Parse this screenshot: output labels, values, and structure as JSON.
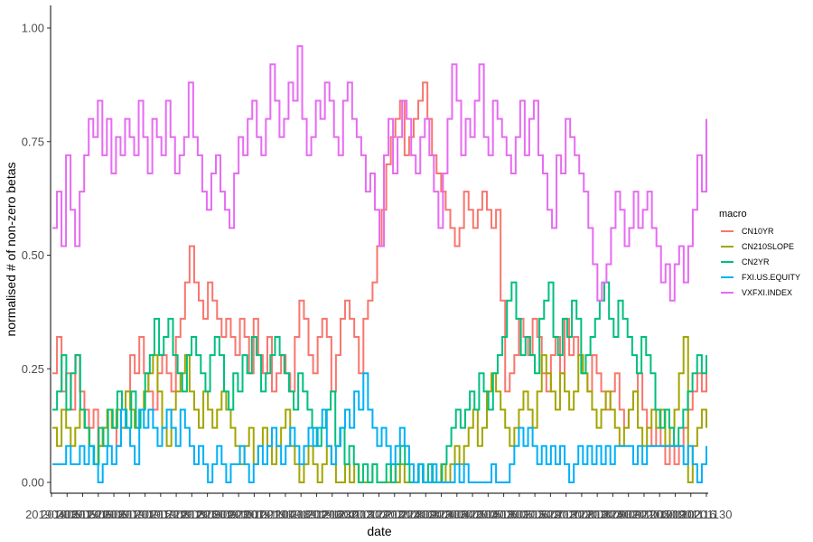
{
  "chart_data": {
    "type": "line",
    "xlabel": "date",
    "ylabel": "normalised # of non-zero betas",
    "ylim": [
      0,
      1
    ],
    "y_ticks": [
      "0.00",
      "0.25",
      "0.50",
      "0.75",
      "1.00"
    ],
    "x_tick_labels": [
      "20190403",
      "20190517",
      "20190520",
      "20190603",
      "20190617",
      "20190701",
      "20190715",
      "20190729",
      "20190812",
      "20190826",
      "20190909",
      "20190923",
      "20191007",
      "20191021",
      "20191104",
      "20191118",
      "20191202",
      "20191216",
      "20191230",
      "20200113",
      "20200127",
      "20200210",
      "20200224",
      "20200309",
      "20200323",
      "20200406",
      "20200420",
      "20200504",
      "20200518",
      "20200601",
      "20200615",
      "20200629",
      "20200713",
      "20200727",
      "20200810",
      "20200824",
      "20200907",
      "20200921",
      "20201005",
      "20201019",
      "20201102",
      "20201116",
      "20201130"
    ],
    "grid": false,
    "legend": {
      "title": "macro",
      "position": "right"
    },
    "series": [
      {
        "name": "CN10YR",
        "color": "#F8766D",
        "values": [
          0.24,
          0.32,
          0.2,
          0.24,
          0.16,
          0.28,
          0.2,
          0.16,
          0.12,
          0.16,
          0.08,
          0.12,
          0.16,
          0.12,
          0.08,
          0.12,
          0.2,
          0.28,
          0.24,
          0.32,
          0.24,
          0.2,
          0.16,
          0.24,
          0.28,
          0.24,
          0.2,
          0.32,
          0.36,
          0.44,
          0.52,
          0.44,
          0.4,
          0.36,
          0.44,
          0.4,
          0.36,
          0.32,
          0.36,
          0.32,
          0.28,
          0.36,
          0.32,
          0.24,
          0.36,
          0.28,
          0.24,
          0.32,
          0.2,
          0.24,
          0.28,
          0.24,
          0.2,
          0.32,
          0.4,
          0.36,
          0.28,
          0.24,
          0.32,
          0.36,
          0.32,
          0.2,
          0.28,
          0.36,
          0.4,
          0.36,
          0.32,
          0.24,
          0.36,
          0.4,
          0.44,
          0.52,
          0.6,
          0.7,
          0.76,
          0.8,
          0.84,
          0.72,
          0.76,
          0.8,
          0.84,
          0.88,
          0.8,
          0.72,
          0.68,
          0.64,
          0.6,
          0.56,
          0.52,
          0.56,
          0.64,
          0.6,
          0.56,
          0.6,
          0.64,
          0.6,
          0.56,
          0.6,
          0.4,
          0.2,
          0.24,
          0.28,
          0.36,
          0.32,
          0.28,
          0.36,
          0.32,
          0.24,
          0.2,
          0.28,
          0.32,
          0.24,
          0.36,
          0.28,
          0.32,
          0.28,
          0.24,
          0.2,
          0.28,
          0.24,
          0.2,
          0.16,
          0.2,
          0.24,
          0.16,
          0.12,
          0.16,
          0.2,
          0.24,
          0.16,
          0.12,
          0.08,
          0.12,
          0.08,
          0.04,
          0.08,
          0.04,
          0.08,
          0.12,
          0.16,
          0.2,
          0.24,
          0.2,
          0.24
        ]
      },
      {
        "name": "CN210SLOPE",
        "color": "#A3A500",
        "values": [
          0.12,
          0.08,
          0.16,
          0.12,
          0.08,
          0.12,
          0.16,
          0.12,
          0.08,
          0.04,
          0.08,
          0.12,
          0.16,
          0.12,
          0.16,
          0.12,
          0.2,
          0.16,
          0.12,
          0.16,
          0.2,
          0.24,
          0.28,
          0.2,
          0.12,
          0.08,
          0.16,
          0.2,
          0.24,
          0.28,
          0.2,
          0.16,
          0.12,
          0.2,
          0.16,
          0.12,
          0.16,
          0.2,
          0.16,
          0.12,
          0.08,
          0.04,
          0.08,
          0.12,
          0.04,
          0.08,
          0.12,
          0.08,
          0.04,
          0.08,
          0.12,
          0.16,
          0.08,
          0.04,
          0.0,
          0.04,
          0.08,
          0.04,
          0.0,
          0.04,
          0.08,
          0.04,
          0.0,
          0.0,
          0.04,
          0.0,
          0.04,
          0.0,
          0.0,
          0.0,
          0.04,
          0.0,
          0.0,
          0.0,
          0.04,
          0.0,
          0.04,
          0.0,
          0.0,
          0.0,
          0.04,
          0.0,
          0.0,
          0.0,
          0.0,
          0.04,
          0.0,
          0.04,
          0.08,
          0.04,
          0.08,
          0.12,
          0.16,
          0.08,
          0.12,
          0.2,
          0.24,
          0.2,
          0.16,
          0.12,
          0.08,
          0.12,
          0.16,
          0.2,
          0.16,
          0.12,
          0.2,
          0.28,
          0.24,
          0.2,
          0.16,
          0.24,
          0.2,
          0.16,
          0.2,
          0.28,
          0.24,
          0.2,
          0.16,
          0.12,
          0.16,
          0.2,
          0.16,
          0.12,
          0.08,
          0.12,
          0.16,
          0.2,
          0.12,
          0.08,
          0.12,
          0.16,
          0.12,
          0.16,
          0.08,
          0.12,
          0.16,
          0.24,
          0.32,
          0.0,
          0.08,
          0.12,
          0.16,
          0.12
        ]
      },
      {
        "name": "CN2YR",
        "color": "#00BF7D",
        "values": [
          0.16,
          0.2,
          0.28,
          0.16,
          0.24,
          0.28,
          0.16,
          0.12,
          0.08,
          0.04,
          0.12,
          0.08,
          0.16,
          0.12,
          0.2,
          0.16,
          0.12,
          0.2,
          0.12,
          0.16,
          0.24,
          0.28,
          0.36,
          0.28,
          0.32,
          0.36,
          0.28,
          0.24,
          0.2,
          0.28,
          0.32,
          0.28,
          0.24,
          0.2,
          0.28,
          0.32,
          0.28,
          0.2,
          0.16,
          0.24,
          0.2,
          0.28,
          0.24,
          0.32,
          0.28,
          0.2,
          0.24,
          0.28,
          0.32,
          0.28,
          0.24,
          0.2,
          0.16,
          0.24,
          0.2,
          0.16,
          0.12,
          0.08,
          0.12,
          0.16,
          0.2,
          0.08,
          0.12,
          0.04,
          0.08,
          0.04,
          0.0,
          0.04,
          0.0,
          0.04,
          0.0,
          0.0,
          0.04,
          0.0,
          0.04,
          0.08,
          0.04,
          0.0,
          0.0,
          0.04,
          0.0,
          0.04,
          0.0,
          0.0,
          0.04,
          0.08,
          0.12,
          0.16,
          0.12,
          0.16,
          0.2,
          0.16,
          0.24,
          0.2,
          0.16,
          0.24,
          0.28,
          0.32,
          0.4,
          0.44,
          0.36,
          0.28,
          0.32,
          0.28,
          0.24,
          0.36,
          0.4,
          0.44,
          0.32,
          0.28,
          0.36,
          0.32,
          0.4,
          0.36,
          0.24,
          0.28,
          0.32,
          0.36,
          0.4,
          0.44,
          0.36,
          0.32,
          0.4,
          0.36,
          0.32,
          0.28,
          0.24,
          0.32,
          0.28,
          0.24,
          0.16,
          0.12,
          0.16,
          0.12,
          0.08,
          0.12,
          0.16,
          0.2,
          0.24,
          0.28,
          0.24,
          0.28
        ]
      },
      {
        "name": "FXI.US.EQUITY",
        "color": "#00B0F6",
        "values": [
          0.04,
          0.04,
          0.04,
          0.08,
          0.04,
          0.04,
          0.08,
          0.04,
          0.08,
          0.04,
          0.0,
          0.04,
          0.08,
          0.04,
          0.08,
          0.16,
          0.12,
          0.08,
          0.04,
          0.16,
          0.12,
          0.16,
          0.12,
          0.08,
          0.12,
          0.16,
          0.12,
          0.08,
          0.16,
          0.12,
          0.08,
          0.04,
          0.08,
          0.04,
          0.0,
          0.04,
          0.08,
          0.04,
          0.0,
          0.04,
          0.04,
          0.08,
          0.04,
          0.0,
          0.04,
          0.08,
          0.04,
          0.08,
          0.12,
          0.08,
          0.04,
          0.08,
          0.12,
          0.08,
          0.04,
          0.08,
          0.12,
          0.08,
          0.12,
          0.16,
          0.08,
          0.04,
          0.08,
          0.12,
          0.16,
          0.12,
          0.2,
          0.16,
          0.24,
          0.16,
          0.12,
          0.08,
          0.12,
          0.08,
          0.04,
          0.08,
          0.12,
          0.08,
          0.04,
          0.0,
          0.04,
          0.0,
          0.0,
          0.04,
          0.0,
          0.0,
          0.0,
          0.0,
          0.04,
          0.0,
          0.04,
          0.0,
          0.0,
          0.0,
          0.0,
          0.0,
          0.04,
          0.0,
          0.0,
          0.0,
          0.04,
          0.08,
          0.12,
          0.08,
          0.12,
          0.08,
          0.04,
          0.08,
          0.04,
          0.08,
          0.04,
          0.08,
          0.04,
          0.0,
          0.04,
          0.08,
          0.04,
          0.08,
          0.04,
          0.08,
          0.04,
          0.08,
          0.04,
          0.08,
          0.08,
          0.08,
          0.08,
          0.04,
          0.08,
          0.04,
          0.08,
          0.08,
          0.08,
          0.08,
          0.08,
          0.08,
          0.08,
          0.08,
          0.04,
          0.08,
          0.04,
          0.0,
          0.04,
          0.08
        ]
      },
      {
        "name": "VXFXI.INDEX",
        "color": "#E76BF3",
        "values": [
          0.56,
          0.64,
          0.52,
          0.72,
          0.6,
          0.52,
          0.64,
          0.72,
          0.8,
          0.76,
          0.84,
          0.72,
          0.8,
          0.68,
          0.76,
          0.72,
          0.8,
          0.76,
          0.72,
          0.84,
          0.76,
          0.68,
          0.8,
          0.76,
          0.72,
          0.84,
          0.76,
          0.68,
          0.72,
          0.76,
          0.88,
          0.76,
          0.72,
          0.64,
          0.6,
          0.68,
          0.72,
          0.64,
          0.6,
          0.56,
          0.68,
          0.76,
          0.72,
          0.8,
          0.84,
          0.76,
          0.72,
          0.8,
          0.92,
          0.84,
          0.76,
          0.8,
          0.88,
          0.84,
          0.96,
          0.8,
          0.72,
          0.76,
          0.84,
          0.8,
          0.88,
          0.84,
          0.76,
          0.72,
          0.84,
          0.88,
          0.8,
          0.76,
          0.72,
          0.64,
          0.68,
          0.6,
          0.52,
          0.72,
          0.8,
          0.68,
          0.76,
          0.84,
          0.8,
          0.72,
          0.68,
          0.76,
          0.8,
          0.72,
          0.64,
          0.56,
          0.68,
          0.8,
          0.92,
          0.84,
          0.72,
          0.8,
          0.76,
          0.84,
          0.92,
          0.76,
          0.72,
          0.84,
          0.8,
          0.76,
          0.72,
          0.68,
          0.76,
          0.84,
          0.72,
          0.8,
          0.84,
          0.72,
          0.68,
          0.6,
          0.56,
          0.72,
          0.68,
          0.8,
          0.76,
          0.72,
          0.68,
          0.64,
          0.56,
          0.48,
          0.4,
          0.44,
          0.48,
          0.56,
          0.64,
          0.6,
          0.52,
          0.56,
          0.64,
          0.56,
          0.6,
          0.64,
          0.56,
          0.52,
          0.44,
          0.48,
          0.4,
          0.48,
          0.52,
          0.44,
          0.52,
          0.6,
          0.72,
          0.64,
          0.8
        ]
      }
    ]
  }
}
